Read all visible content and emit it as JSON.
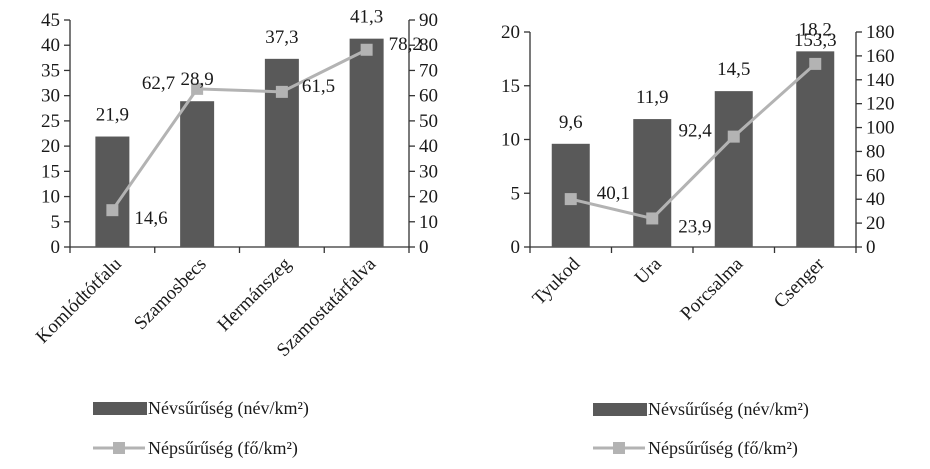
{
  "colors": {
    "bar": "#595959",
    "line": "#b3b3b3",
    "text": "#1a1a1a",
    "axis": "#333333"
  },
  "chart_data": [
    {
      "type": "bar",
      "categories": [
        "Komlódtótfalu",
        "Szamosbecs",
        "Hermánszeg",
        "Szamostatárfalva"
      ],
      "series": [
        {
          "name": "Névsűrűség (név/km²)",
          "type": "bar",
          "axis": "left",
          "values": [
            21.9,
            28.9,
            37.3,
            41.3
          ],
          "labels": [
            "21,9",
            "28,9",
            "37,3",
            "41,3"
          ]
        },
        {
          "name": "Népsűrűség (fő/km²)",
          "type": "line",
          "axis": "right",
          "values": [
            14.6,
            62.7,
            61.5,
            78.2
          ],
          "labels": [
            "14,6",
            "62,7",
            "61,5",
            "78,2"
          ]
        }
      ],
      "ylim_left": [
        0,
        45
      ],
      "yticks_left": [
        0,
        5,
        10,
        15,
        20,
        25,
        30,
        35,
        40,
        45
      ],
      "ylim_right": [
        0,
        90
      ],
      "yticks_right": [
        0,
        10,
        20,
        30,
        40,
        50,
        60,
        70,
        80,
        90
      ],
      "grid": false,
      "legend": "bottom"
    },
    {
      "type": "bar",
      "categories": [
        "Tyukod",
        "Ura",
        "Porcsalma",
        "Csenger"
      ],
      "series": [
        {
          "name": "Névsűrűség (név/km²)",
          "type": "bar",
          "axis": "left",
          "values": [
            9.6,
            11.9,
            14.5,
            18.2
          ],
          "labels": [
            "9,6",
            "11,9",
            "14,5",
            "18,2"
          ]
        },
        {
          "name": "Népsűrűség (fő/km²)",
          "type": "line",
          "axis": "right",
          "values": [
            40.1,
            23.9,
            92.4,
            153.3
          ],
          "labels": [
            "40,1",
            "23,9",
            "92,4",
            "153,3"
          ]
        }
      ],
      "ylim_left": [
        0,
        20
      ],
      "yticks_left": [
        0,
        5,
        10,
        15,
        20
      ],
      "ylim_right": [
        0,
        180
      ],
      "yticks_right": [
        0,
        20,
        40,
        60,
        80,
        100,
        120,
        140,
        160,
        180
      ],
      "grid": false,
      "legend": "bottom"
    }
  ]
}
